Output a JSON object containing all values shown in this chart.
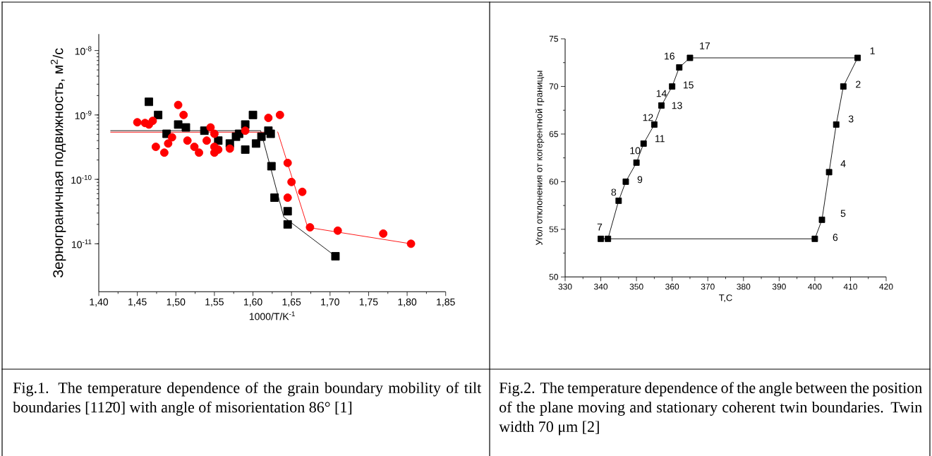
{
  "chart_data": [
    {
      "type": "scatter",
      "xlabel": "1000/T/K$^{-1}$",
      "ylabel": "Зернограничная подвижность, м$^{2}$/с",
      "log": "y",
      "xlim": [
        1.4,
        1.85
      ],
      "ylim": [
        1.8e-12,
        1.8e-08
      ],
      "xticks": [
        {
          "value": 1.4,
          "label": "1,40"
        },
        {
          "value": 1.45,
          "label": "1,45"
        },
        {
          "value": 1.5,
          "label": "1,50"
        },
        {
          "value": 1.55,
          "label": "1,55"
        },
        {
          "value": 1.6,
          "label": "1,60"
        },
        {
          "value": 1.65,
          "label": "1,65"
        },
        {
          "value": 1.7,
          "label": "1,70"
        },
        {
          "value": 1.75,
          "label": "1,75"
        },
        {
          "value": 1.8,
          "label": "1,80"
        },
        {
          "value": 1.85,
          "label": "1,85"
        }
      ],
      "yticks": [
        {
          "value": 1e-11,
          "label": "10$^{-11}$"
        },
        {
          "value": 1e-10,
          "label": "10$^{-10}$"
        },
        {
          "value": 1e-09,
          "label": "10$^{-9}$"
        },
        {
          "value": 1e-08,
          "label": "10$^{-8}$"
        }
      ],
      "series": [
        {
          "type": "line",
          "marker": "none",
          "color": "#000000",
          "x": [
            1.415,
            1.61,
            1.64,
            1.707
          ],
          "values": [
            5.7e-10,
            5.7e-10,
            2.6e-11,
            6.4e-12
          ]
        },
        {
          "type": "line",
          "marker": "none",
          "color": "#ff0000",
          "x": [
            1.415,
            1.626
          ],
          "values": [
            5.4e-10,
            5.4e-10
          ]
        },
        {
          "type": "line",
          "marker": "none",
          "color": "#ff0000",
          "x": [
            1.632,
            1.671,
            1.805
          ],
          "values": [
            5.5e-10,
            1.8e-11,
            1e-11
          ]
        },
        {
          "type": "scatter",
          "marker": "square",
          "color": "#000000",
          "x": [
            1.465,
            1.477,
            1.488,
            1.503,
            1.513,
            1.537,
            1.555,
            1.57,
            1.578,
            1.582,
            1.59,
            1.59,
            1.6,
            1.604,
            1.611,
            1.62,
            1.623,
            1.624,
            1.628,
            1.645,
            1.645,
            1.707
          ],
          "values": [
            1.6e-09,
            1e-09,
            5.1e-10,
            7.1e-10,
            6.4e-10,
            5.7e-10,
            4e-10,
            3.6e-10,
            4.6e-10,
            5.1e-10,
            7.1e-10,
            2.9e-10,
            1e-09,
            3.6e-10,
            4.6e-10,
            5.7e-10,
            5.1e-10,
            1.6e-10,
            5.2e-11,
            3.2e-11,
            2e-11,
            6.4e-12
          ]
        },
        {
          "type": "scatter",
          "marker": "circle",
          "color": "#ff0000",
          "x": [
            1.45,
            1.46,
            1.465,
            1.47,
            1.474,
            1.485,
            1.49,
            1.495,
            1.503,
            1.51,
            1.515,
            1.524,
            1.53,
            1.54,
            1.545,
            1.55,
            1.55,
            1.55,
            1.555,
            1.57,
            1.59,
            1.62,
            1.635,
            1.645,
            1.65,
            1.664,
            1.645,
            1.674,
            1.71,
            1.769,
            1.805
          ],
          "values": [
            7.7e-10,
            7.5e-10,
            7.1e-10,
            8.1e-10,
            3.2e-10,
            2.6e-10,
            3.6e-10,
            4.5e-10,
            1.43e-09,
            1e-09,
            4e-10,
            3.2e-10,
            2.6e-10,
            4e-10,
            6.4e-10,
            5.1e-10,
            3.2e-10,
            2.6e-10,
            2.9e-10,
            3e-10,
            5.7e-10,
            9e-10,
            1e-09,
            1.8e-10,
            9.1e-11,
            6.4e-11,
            5.2e-11,
            1.8e-11,
            1.6e-11,
            1.44e-11,
            1e-11
          ]
        }
      ],
      "annotations": [
        "Fig.1. The temperature dependence of the grain boundary mobility of tilt boundaries [112̄0] with angle of misorientation 86° [1]"
      ]
    },
    {
      "type": "line",
      "xlabel": "T,C",
      "ylabel": "Угол отклонения от когерентной границы",
      "xlim": [
        330,
        420
      ],
      "ylim": [
        50,
        75
      ],
      "xticks": [
        330,
        340,
        350,
        360,
        370,
        380,
        390,
        400,
        410,
        420
      ],
      "yticks": [
        50,
        55,
        60,
        65,
        70,
        75
      ],
      "series": [
        {
          "marker": "square",
          "color": "#000000",
          "x": [
            412,
            408,
            406,
            404,
            402,
            400,
            340,
            342,
            345,
            347,
            350,
            352,
            355,
            357,
            360,
            362,
            365
          ],
          "values": [
            73,
            70,
            66,
            61,
            56,
            54,
            54,
            54,
            58,
            60,
            62,
            64,
            66,
            68,
            70,
            72,
            73
          ]
        },
        {
          "marker": "none",
          "color": "#000000",
          "x": [
            365,
            412
          ],
          "values": [
            73,
            73
          ]
        }
      ],
      "annotations": [
        "Fig.2. The temperature dependence of the angle between the position of the plane moving and stationary coherent twin boundaries. Twin width 70 μm [2]",
        {
          "text": "1",
          "x": 412,
          "y": 73
        },
        {
          "text": "2",
          "x": 408,
          "y": 70
        },
        {
          "text": "3",
          "x": 406,
          "y": 66
        },
        {
          "text": "4",
          "x": 404,
          "y": 61
        },
        {
          "text": "5",
          "x": 402,
          "y": 56
        },
        {
          "text": "6",
          "x": 400,
          "y": 54
        },
        {
          "text": "7",
          "x": 340,
          "y": 54
        },
        {
          "text": "8",
          "x": 345,
          "y": 58
        },
        {
          "text": "9",
          "x": 347,
          "y": 60
        },
        {
          "text": "10",
          "x": 350,
          "y": 62
        },
        {
          "text": "11",
          "x": 352,
          "y": 64
        },
        {
          "text": "12",
          "x": 355,
          "y": 66
        },
        {
          "text": "13",
          "x": 357,
          "y": 68
        },
        {
          "text": "14",
          "x": 357,
          "y": 68
        },
        {
          "text": "15",
          "x": 360,
          "y": 70
        },
        {
          "text": "16",
          "x": 362,
          "y": 72
        },
        {
          "text": "17",
          "x": 365,
          "y": 73
        }
      ]
    }
  ]
}
